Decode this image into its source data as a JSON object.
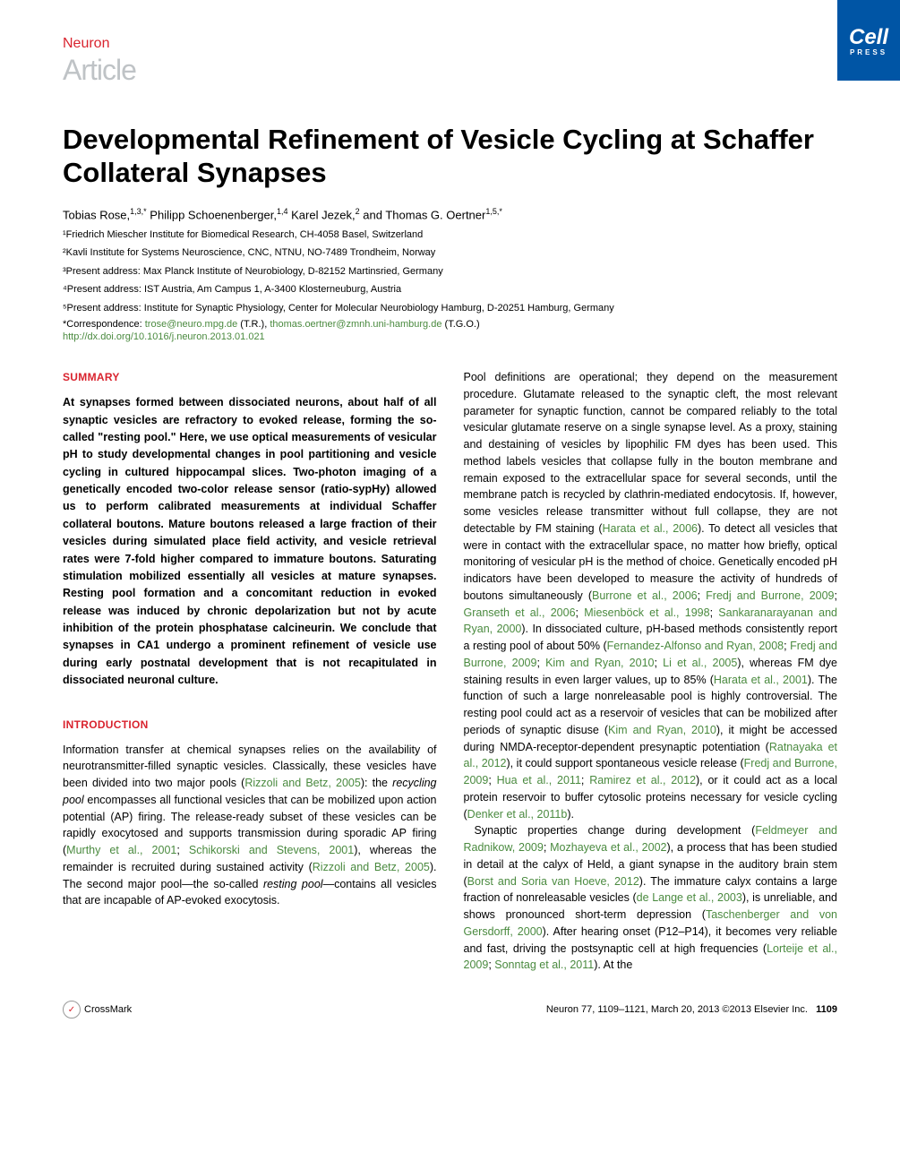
{
  "header": {
    "journal": "Neuron",
    "articleType": "Article",
    "publisher": "Cell",
    "publisherSub": "PRESS"
  },
  "title": "Developmental Refinement of Vesicle Cycling at Schaffer Collateral Synapses",
  "authors": [
    {
      "name": "Tobias Rose,",
      "sup": "1,3,*"
    },
    {
      "name": " Philipp Schoenenberger,",
      "sup": "1,4"
    },
    {
      "name": " Karel Jezek,",
      "sup": "2"
    },
    {
      "name": " and Thomas G. Oertner",
      "sup": "1,5,*"
    }
  ],
  "affiliations": [
    "¹Friedrich Miescher Institute for Biomedical Research, CH-4058 Basel, Switzerland",
    "²Kavli Institute for Systems Neuroscience, CNC, NTNU, NO-7489 Trondheim, Norway",
    "³Present address: Max Planck Institute of Neurobiology, D-82152 Martinsried, Germany",
    "⁴Present address: IST Austria, Am Campus 1, A-3400 Klosterneuburg, Austria",
    "⁵Present address: Institute for Synaptic Physiology, Center for Molecular Neurobiology Hamburg, D-20251 Hamburg, Germany"
  ],
  "correspondence": {
    "label": "*Correspondence: ",
    "email1": "trose@neuro.mpg.de",
    "mid1": " (T.R.), ",
    "email2": "thomas.oertner@zmnh.uni-hamburg.de",
    "mid2": " (T.G.O.)"
  },
  "doi": "http://dx.doi.org/10.1016/j.neuron.2013.01.021",
  "sections": {
    "summaryHeading": "SUMMARY",
    "summaryText": "At synapses formed between dissociated neurons, about half of all synaptic vesicles are refractory to evoked release, forming the so-called \"resting pool.\" Here, we use optical measurements of vesicular pH to study developmental changes in pool partitioning and vesicle cycling in cultured hippocampal slices. Two-photon imaging of a genetically encoded two-color release sensor (ratio-sypHy) allowed us to perform calibrated measurements at individual Schaffer collateral boutons. Mature boutons released a large fraction of their vesicles during simulated place field activity, and vesicle retrieval rates were 7-fold higher compared to immature boutons. Saturating stimulation mobilized essentially all vesicles at mature synapses. Resting pool formation and a concomitant reduction in evoked release was induced by chronic depolarization but not by acute inhibition of the protein phosphatase calcineurin. We conclude that synapses in CA1 undergo a prominent refinement of vesicle use during early postnatal development that is not recapitulated in dissociated neuronal culture.",
    "introHeading": "INTRODUCTION",
    "introP1a": "Information transfer at chemical synapses relies on the availability of neurotransmitter-filled synaptic vesicles. Classically, these vesicles have been divided into two major pools (",
    "introRef1": "Rizzoli and Betz, 2005",
    "introP1b": "): the ",
    "introItalic1": "recycling pool",
    "introP1c": " encompasses all functional vesicles that can be mobilized upon action potential (AP) firing. The release-ready subset of these vesicles can be rapidly exocytosed and supports transmission during sporadic AP firing (",
    "introRef2": "Murthy et al., 2001",
    "introP1d": "; ",
    "introRef3": "Schikorski and Stevens, 2001",
    "introP1e": "), whereas the remainder is recruited during sustained activity (",
    "introRef4": "Rizzoli and Betz, 2005",
    "introP1f": "). The second major pool—the so-called ",
    "introItalic2": "resting pool",
    "introP1g": "—contains all vesicles that are incapable of AP-evoked exocytosis.",
    "col2P1a": "Pool definitions are operational; they depend on the measurement procedure. Glutamate released to the synaptic cleft, the most relevant parameter for synaptic function, cannot be compared reliably to the total vesicular glutamate reserve on a single synapse level. As a proxy, staining and destaining of vesicles by lipophilic FM dyes has been used. This method labels vesicles that collapse fully in the bouton membrane and remain exposed to the extracellular space for several seconds, until the membrane patch is recycled by clathrin-mediated endocytosis. If, however, some vesicles release transmitter without full collapse, they are not detectable by FM staining (",
    "col2Ref1": "Harata et al., 2006",
    "col2P1b": "). To detect all vesicles that were in contact with the extracellular space, no matter how briefly, optical monitoring of vesicular pH is the method of choice. Genetically encoded pH indicators have been developed to measure the activity of hundreds of boutons simultaneously (",
    "col2Ref2": "Burrone et al., 2006",
    "col2P1c": "; ",
    "col2Ref3": "Fredj and Burrone, 2009",
    "col2P1d": "; ",
    "col2Ref4": "Granseth et al., 2006",
    "col2P1e": "; ",
    "col2Ref5": "Miesenböck et al., 1998",
    "col2P1f": "; ",
    "col2Ref6": "Sankaranarayanan and Ryan, 2000",
    "col2P1g": "). In dissociated culture, pH-based methods consistently report a resting pool of about 50% (",
    "col2Ref7": "Fernandez-Alfonso and Ryan, 2008",
    "col2P1h": "; ",
    "col2Ref8": "Fredj and Burrone, 2009",
    "col2P1i": "; ",
    "col2Ref9": "Kim and Ryan, 2010",
    "col2P1j": "; ",
    "col2Ref10": "Li et al., 2005",
    "col2P1k": "), whereas FM dye staining results in even larger values, up to 85% (",
    "col2Ref11": "Harata et al., 2001",
    "col2P1l": "). The function of such a large nonreleasable pool is highly controversial. The resting pool could act as a reservoir of vesicles that can be mobilized after periods of synaptic disuse (",
    "col2Ref12": "Kim and Ryan, 2010",
    "col2P1m": "), it might be accessed during NMDA-receptor-dependent presynaptic potentiation (",
    "col2Ref13": "Ratnayaka et al., 2012",
    "col2P1n": "), it could support spontaneous vesicle release (",
    "col2Ref14": "Fredj and Burrone, 2009",
    "col2P1o": "; ",
    "col2Ref15": "Hua et al., 2011",
    "col2P1p": "; ",
    "col2Ref16": "Ramirez et al., 2012",
    "col2P1q": "), or it could act as a local protein reservoir to buffer cytosolic proteins necessary for vesicle cycling (",
    "col2Ref17": "Denker et al., 2011b",
    "col2P1r": ").",
    "col2P2a": "Synaptic properties change during development (",
    "col2Ref18": "Feldmeyer and Radnikow, 2009",
    "col2P2b": "; ",
    "col2Ref19": "Mozhayeva et al., 2002",
    "col2P2c": "), a process that has been studied in detail at the calyx of Held, a giant synapse in the auditory brain stem (",
    "col2Ref20": "Borst and Soria van Hoeve, 2012",
    "col2P2d": "). The immature calyx contains a large fraction of nonreleasable vesicles (",
    "col2Ref21": "de Lange et al., 2003",
    "col2P2e": "), is unreliable, and shows pronounced short-term depression (",
    "col2Ref22": "Taschenberger and von Gersdorff, 2000",
    "col2P2f": "). After hearing onset (P12–P14), it becomes very reliable and fast, driving the postsynaptic cell at high frequencies (",
    "col2Ref23": "Lorteije et al., 2009",
    "col2P2g": "; ",
    "col2Ref24": "Sonntag et al., 2011",
    "col2P2h": "). At the"
  },
  "footer": {
    "crossmark": "CrossMark",
    "citation": "Neuron 77, 1109–1121, March 20, 2013 ©2013 Elsevier Inc.",
    "pageNum": "1109"
  }
}
